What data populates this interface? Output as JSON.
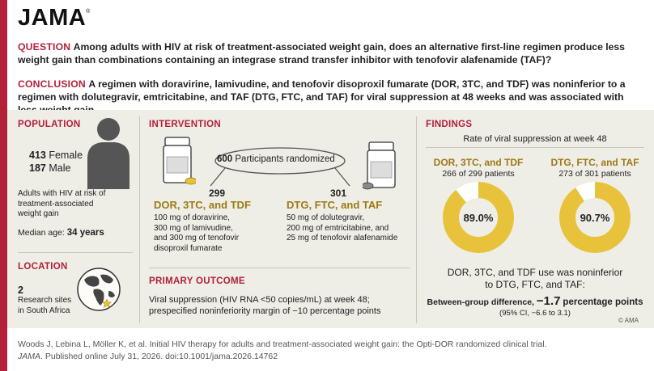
{
  "brand": {
    "logo": "JAMA"
  },
  "question": {
    "label": "QUESTION",
    "text": "Among adults with HIV at risk of treatment-associated weight gain, does an alternative first-line regimen produce less weight gain than combinations containing an integrase strand transfer inhibitor with tenofovir alafenamide (TAF)?"
  },
  "conclusion": {
    "label": "CONCLUSION",
    "text": "A regimen with doravirine, lamivudine, and tenofovir disoproxil fumarate (DOR, 3TC, and TDF) was noninferior to a regimen with dolutegravir, emtricitabine, and TAF (DTG, FTC, and TAF) for viral suppression at 48 weeks and was associated with less weight gain."
  },
  "population": {
    "heading": "POPULATION",
    "female_count": "413",
    "female_label": "Female",
    "male_count": "187",
    "male_label": "Male",
    "description": "Adults with HIV at risk of treatment-associated weight gain",
    "median_age_label": "Median age:",
    "median_age_value": "34 years"
  },
  "location": {
    "heading": "LOCATION",
    "count": "2",
    "description": "Research sites in South Africa"
  },
  "intervention": {
    "heading": "INTERVENTION",
    "randomized_count": "600",
    "randomized_label": "Participants randomized",
    "arm1": {
      "count": "299",
      "name": "DOR, 3TC, and TDF",
      "details": [
        "100 mg of doravirine,",
        "300 mg of lamivudine,",
        "and 300 mg of tenofovir",
        "disoproxil fumarate"
      ]
    },
    "arm2": {
      "count": "301",
      "name": "DTG, FTC, and TAF",
      "details": [
        "50 mg of dolutegravir,",
        "200 mg of emtricitabine, and",
        "25 mg of tenofovir alafenamide"
      ]
    }
  },
  "primary_outcome": {
    "heading": "PRIMARY OUTCOME",
    "line1": "Viral suppression (HIV RNA <50 copies/mL) at week 48;",
    "line2": "prespecified noninferiority margin of −10 percentage points"
  },
  "findings": {
    "heading": "FINDINGS",
    "subtitle": "Rate of viral suppression at week 48",
    "arm1": {
      "name": "DOR, 3TC, and TDF",
      "patients": "266 of 299 patients",
      "percent_label": "89.0%",
      "percent": 89.0
    },
    "arm2": {
      "name": "DTG, FTC, and TAF",
      "patients": "273 of 301 patients",
      "percent_label": "90.7%",
      "percent": 90.7
    },
    "conclusion_line1": "DOR, 3TC, and TDF use was noninferior",
    "conclusion_line2": "to DTG, FTC, and TAF:",
    "difference_label": "Between-group difference,",
    "difference_value": "−1.7",
    "difference_unit": "percentage points",
    "ci": "(95% CI, −6.6 to 3.1)",
    "copyright": "© AMA"
  },
  "citation": {
    "line1": "Woods J, Lebina L, Möller K, et al. Initial HIV therapy for adults and treatment-associated weight gain: the Opti-DOR randomized clinical trial.",
    "journal": "JAMA",
    "line2_rest": ". Published online July 31, 2026. doi:10.1001/jama.2026.14762"
  },
  "colors": {
    "accent_red": "#b3203a",
    "gold": "#e8c23a",
    "gold_text": "#9c7a14",
    "panel": "#eeede6"
  }
}
